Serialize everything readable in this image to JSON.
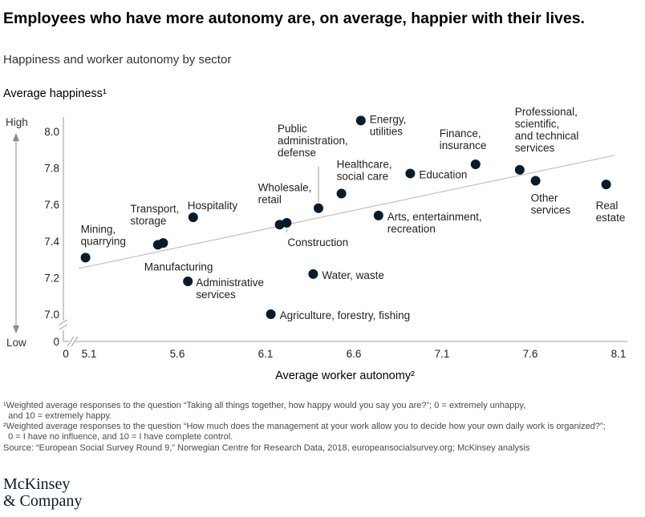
{
  "title": "Employees who have more autonomy are, on average, happier with their lives.",
  "subtitle": "Happiness and worker autonomy by sector",
  "footnotes": [
    "¹Weighted average responses to the question “Taking all things together, how happy would you say you are?”; 0 = extremely unhappy,",
    "  and 10 = extremely happy.",
    "²Weighted average responses to the question “How much does the management at your work allow you to decide how your own daily work is organized?”;",
    "  0 = I have no influence, and 10 = I have complete control.",
    "Source: “European Social Survey Round 9,” Norwegian Centre for Research Data, 2018, europeansocialsurvey.org; McKinsey analysis"
  ],
  "logo": [
    "McKinsey",
    "& Company"
  ],
  "chart_data": {
    "type": "scatter",
    "title": "Happiness and worker autonomy by sector",
    "xlabel": "Average worker autonomy²",
    "ylabel": "Average happiness¹",
    "y_arrow_labels": {
      "high": "High",
      "low": "Low"
    },
    "xlim": [
      5.0,
      8.1
    ],
    "ylim": [
      7.0,
      8.1
    ],
    "axis_break": true,
    "x_ticks": [
      "5.1",
      "5.6",
      "6.1",
      "6.6",
      "7.1",
      "7.6",
      "8.1"
    ],
    "y_ticks": [
      "8.0",
      "7.8",
      "7.6",
      "7.4",
      "7.2",
      "7.0"
    ],
    "y_zero_label": "0",
    "x_zero_label": "0",
    "trendline": {
      "x": [
        5.04,
        8.08
      ],
      "y": [
        7.25,
        7.87
      ]
    },
    "grid": false,
    "colors": {
      "point": "#051c2c",
      "trend": "#b5b5b5",
      "axis": "#9a9a9a",
      "text": "#222222"
    },
    "points": [
      {
        "sector": "Mining, quarrying",
        "label_lines": [
          "Mining,",
          "quarrying"
        ],
        "x": 5.08,
        "y": 7.31
      },
      {
        "sector": "Manufacturing",
        "label_lines": [
          "Manufacturing"
        ],
        "x": 5.49,
        "y": 7.38
      },
      {
        "sector": "Transport, storage",
        "label_lines": [
          "Transport,",
          "storage"
        ],
        "x": 5.52,
        "y": 7.39
      },
      {
        "sector": "Hospitality",
        "label_lines": [
          "Hospitality"
        ],
        "x": 5.69,
        "y": 7.53
      },
      {
        "sector": "Administrative services",
        "label_lines": [
          "Administrative",
          "services"
        ],
        "x": 5.66,
        "y": 7.18
      },
      {
        "sector": "Agriculture, forestry, fishing",
        "label_lines": [
          "Agriculture, forestry, fishing"
        ],
        "x": 6.13,
        "y": 7.0
      },
      {
        "sector": "Wholesale, retail",
        "label_lines": [
          "Wholesale,",
          "retail"
        ],
        "x": 6.18,
        "y": 7.49
      },
      {
        "sector": "Construction",
        "label_lines": [
          "Construction"
        ],
        "x": 6.22,
        "y": 7.5
      },
      {
        "sector": "Water, waste",
        "label_lines": [
          "Water, waste"
        ],
        "x": 6.37,
        "y": 7.22
      },
      {
        "sector": "Public administration, defense",
        "label_lines": [
          "Public",
          "administration,",
          "defense"
        ],
        "x": 6.4,
        "y": 7.58
      },
      {
        "sector": "Healthcare, social care",
        "label_lines": [
          "Healthcare,",
          "social care"
        ],
        "x": 6.53,
        "y": 7.66
      },
      {
        "sector": "Energy, utilities",
        "label_lines": [
          "Energy,",
          "utilities"
        ],
        "x": 6.64,
        "y": 8.06
      },
      {
        "sector": "Arts, entertainment, recreation",
        "label_lines": [
          "Arts, entertainment,",
          "recreation"
        ],
        "x": 6.74,
        "y": 7.54
      },
      {
        "sector": "Education",
        "label_lines": [
          "Education"
        ],
        "x": 6.92,
        "y": 7.77
      },
      {
        "sector": "Finance, insurance",
        "label_lines": [
          "Finance,",
          "insurance"
        ],
        "x": 7.29,
        "y": 7.82
      },
      {
        "sector": "Professional, scientific, and technical services",
        "label_lines": [
          "Professional,",
          "scientific,",
          "and technical",
          "services"
        ],
        "x": 7.54,
        "y": 7.79
      },
      {
        "sector": "Other services",
        "label_lines": [
          "Other",
          "services"
        ],
        "x": 7.63,
        "y": 7.73
      },
      {
        "sector": "Real estate",
        "label_lines": [
          "Real",
          "estate"
        ],
        "x": 8.03,
        "y": 7.71
      }
    ]
  }
}
